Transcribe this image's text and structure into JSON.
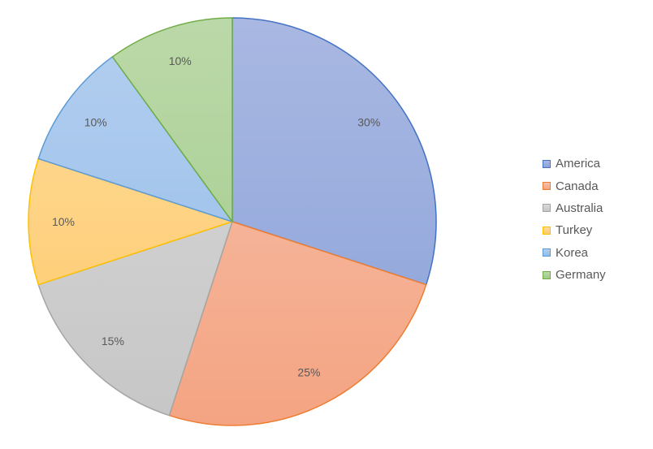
{
  "chart_data": {
    "type": "pie",
    "title": "",
    "categories": [
      "America",
      "Canada",
      "Australia",
      "Turkey",
      "Korea",
      "Germany"
    ],
    "values": [
      30,
      25,
      15,
      10,
      10,
      10
    ],
    "labels": [
      "30%",
      "25%",
      "15%",
      "10%",
      "10%",
      "10%"
    ],
    "legend_position": "right",
    "colors": {
      "fill_top": [
        "#a9b8e2",
        "#f7c2ad",
        "#d9d9d9",
        "#fedc9b",
        "#b4cff0",
        "#bbd9a8"
      ],
      "fill_bottom": [
        "#8aa2d9",
        "#f4a482",
        "#c6c6c6",
        "#fdc96a",
        "#92bbe7",
        "#a0c98a"
      ],
      "stroke": [
        "#4472c4",
        "#ed7d31",
        "#a5a5a5",
        "#ffc000",
        "#5b9bd5",
        "#70ad47"
      ]
    }
  }
}
